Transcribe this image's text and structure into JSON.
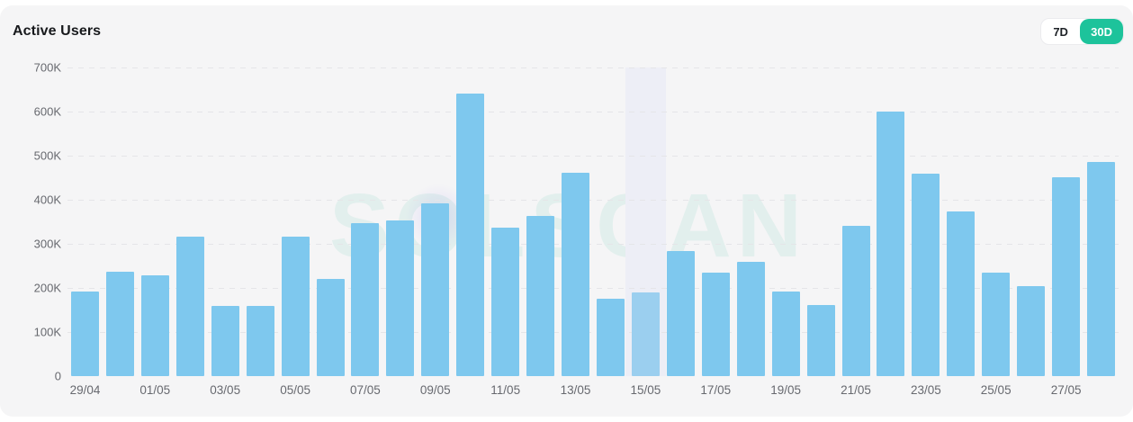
{
  "header": {
    "title": "Active Users",
    "range_buttons": [
      {
        "label": "7D",
        "selected": false
      },
      {
        "label": "30D",
        "selected": true
      }
    ]
  },
  "watermark": "SOLSCAN",
  "colors": {
    "accent_green": "#1dc39b",
    "bar": "#7ec8ee",
    "bar_hovered": "#9bcfef",
    "hover_band": "#edeef6",
    "card_background": "#f5f5f6",
    "grid": "#e5e5e8",
    "axis_text": "#67696f",
    "title_text": "#17191c"
  },
  "chart_data": {
    "type": "bar",
    "title": "Active Users",
    "xlabel": "",
    "ylabel": "",
    "x": [
      "29/04",
      "30/04",
      "01/05",
      "02/05",
      "03/05",
      "04/05",
      "05/05",
      "06/05",
      "07/05",
      "08/05",
      "09/05",
      "10/05",
      "11/05",
      "12/05",
      "13/05",
      "14/05",
      "15/05",
      "16/05",
      "17/05",
      "18/05",
      "19/05",
      "20/05",
      "21/05",
      "22/05",
      "23/05",
      "24/05",
      "25/05",
      "26/05",
      "27/05",
      "28/05"
    ],
    "values": [
      192000,
      237000,
      229000,
      317000,
      159000,
      159000,
      317000,
      220000,
      348000,
      353000,
      392000,
      641000,
      337000,
      363000,
      461000,
      176000,
      190000,
      283000,
      234000,
      259000,
      192000,
      162000,
      340000,
      600000,
      460000,
      373000,
      234000,
      205000,
      451000,
      486000
    ],
    "ylim": [
      0,
      700000
    ],
    "y_ticks": [
      "0",
      "100K",
      "200K",
      "300K",
      "400K",
      "500K",
      "600K",
      "700K"
    ],
    "x_tick_step": 2,
    "grid": "horizontal-dashed",
    "legend": "none",
    "highlighted_index": 16,
    "highlighted_date": "15/05",
    "highlighted_value": 190000
  }
}
